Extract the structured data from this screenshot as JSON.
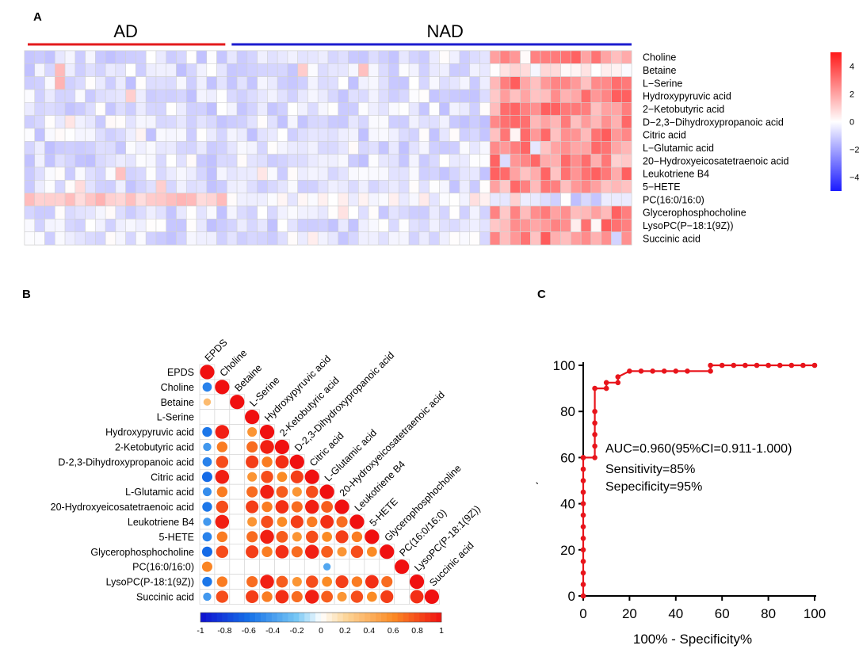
{
  "panels": {
    "a": {
      "letter": "A"
    },
    "b": {
      "letter": "B"
    },
    "c": {
      "letter": "C"
    }
  },
  "chart_data": [
    {
      "type": "heatmap",
      "panel": "A",
      "groups": [
        {
          "name": "AD",
          "color": "#e31a1c",
          "n_samples": 20
        },
        {
          "name": "NAD",
          "color": "#1c1ccf",
          "n_samples": 40
        }
      ],
      "rows": [
        "Choline",
        "Betaine",
        "L−Serine",
        "Hydroxypyruvic acid",
        "2−Ketobutyric acid",
        "D−2,3−Dihydroxypropanoic acid",
        "Citric acid",
        "L−Glutamic acid",
        "20−Hydroxyeicosatetraenoic acid",
        "Leukotriene B4",
        "5−HETE",
        "PC(16:0/16:0)",
        "Glycerophosphocholine",
        "LysoPC(P−18:1(9Z))",
        "Succinic acid"
      ],
      "colorbar": {
        "ticks": [
          "4",
          "2",
          "0",
          "−2",
          "−4"
        ],
        "min": -5,
        "max": 5,
        "low_color": "#1a1aff",
        "mid_color": "#ffffff",
        "high_color": "#ff1a1a"
      }
    },
    {
      "type": "heatmap",
      "panel": "B",
      "subtype": "correlation",
      "variables": [
        "EPDS",
        "Choline",
        "Betaine",
        "L-Serine",
        "Hydroxypyruvic acid",
        "2-Ketobutyric acid",
        "D-2,3-Dihydroxypropanoic acid",
        "Citric acid",
        "L-Glutamic acid",
        "20-Hydroxyeicosatetraenoic acid",
        "Leukotriene B4",
        "5-HETE",
        "Glycerophosphocholine",
        "PC(16:0/16:0)",
        "LysoPC(P-18:1(9Z))",
        "Succinic acid"
      ],
      "colorbar": {
        "ticks": [
          "-1",
          "-0.8",
          "-0.6",
          "-0.4",
          "-0.2",
          "0",
          "0.2",
          "0.4",
          "0.6",
          "0.8",
          "1"
        ],
        "min": -1,
        "max": 1
      }
    },
    {
      "type": "line",
      "panel": "C",
      "xlabel": "100% - Specificity%",
      "ylabel": "ˎ",
      "xlim": [
        0,
        100
      ],
      "ylim": [
        0,
        100
      ],
      "xticks": [
        "0",
        "20",
        "40",
        "60",
        "80",
        "100"
      ],
      "yticks": [
        "0",
        "20",
        "40",
        "60",
        "80",
        "100"
      ],
      "series": [
        {
          "name": "ROC",
          "color": "#e8141b",
          "x": [
            0,
            0,
            0,
            0,
            0,
            0,
            0,
            0,
            0,
            0,
            0,
            0,
            0,
            0,
            5,
            5,
            5,
            5,
            5,
            5,
            10,
            10,
            15,
            15,
            20,
            25,
            30,
            35,
            40,
            45,
            55,
            55,
            60,
            65,
            70,
            75,
            80,
            85,
            90,
            95,
            100
          ],
          "y": [
            0,
            5,
            10,
            15,
            20,
            25,
            30,
            35,
            40,
            45,
            50,
            55,
            60,
            60,
            60,
            65,
            70,
            75,
            80,
            90,
            90,
            92.5,
            92.5,
            95,
            97.5,
            97.5,
            97.5,
            97.5,
            97.5,
            97.5,
            97.5,
            100,
            100,
            100,
            100,
            100,
            100,
            100,
            100,
            100,
            100
          ]
        }
      ],
      "annotations": [
        "AUC=0.960(95%CI=0.911-1.000)",
        "Sensitivity=85%",
        "Sepecificity=95%"
      ]
    }
  ]
}
